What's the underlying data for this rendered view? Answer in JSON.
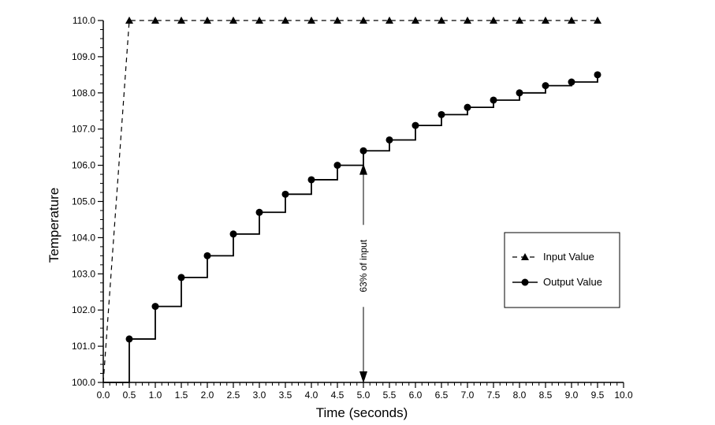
{
  "chart_data": {
    "type": "line",
    "xlabel": "Time (seconds)",
    "ylabel": "Temperature",
    "xlim": [
      0,
      10
    ],
    "ylim": [
      100,
      110
    ],
    "xticks": [
      "0.0",
      "0.5",
      "1.0",
      "1.5",
      "2.0",
      "2.5",
      "3.0",
      "3.5",
      "4.0",
      "4.5",
      "5.0",
      "5.5",
      "6.0",
      "6.5",
      "7.0",
      "7.5",
      "8.0",
      "8.5",
      "9.0",
      "9.5",
      "10.0"
    ],
    "yticks": [
      "100.0",
      "101.0",
      "102.0",
      "103.0",
      "104.0",
      "105.0",
      "106.0",
      "107.0",
      "108.0",
      "109.0",
      "110.0"
    ],
    "grid": false,
    "legend_position": "right",
    "series": [
      {
        "name": "Input Value",
        "style": "dashed",
        "marker": "triangle",
        "x": [
          0.0,
          0.5,
          1.0,
          1.5,
          2.0,
          2.5,
          3.0,
          3.5,
          4.0,
          4.5,
          5.0,
          5.5,
          6.0,
          6.5,
          7.0,
          7.5,
          8.0,
          8.5,
          9.0,
          9.5
        ],
        "y": [
          100.0,
          110.0,
          110.0,
          110.0,
          110.0,
          110.0,
          110.0,
          110.0,
          110.0,
          110.0,
          110.0,
          110.0,
          110.0,
          110.0,
          110.0,
          110.0,
          110.0,
          110.0,
          110.0,
          110.0
        ]
      },
      {
        "name": "Output Value",
        "style": "step",
        "marker": "circle",
        "x": [
          0.5,
          1.0,
          1.5,
          2.0,
          2.5,
          3.0,
          3.5,
          4.0,
          4.5,
          5.0,
          5.5,
          6.0,
          6.5,
          7.0,
          7.5,
          8.0,
          8.5,
          9.0,
          9.5
        ],
        "y": [
          101.2,
          102.1,
          102.9,
          103.5,
          104.1,
          104.7,
          105.2,
          105.6,
          106.0,
          106.4,
          106.7,
          107.1,
          107.4,
          107.6,
          107.8,
          108.0,
          108.2,
          108.3,
          108.5
        ]
      }
    ],
    "annotation": {
      "text": "63% of input",
      "x": 5.0,
      "y_from": 100.0,
      "y_to": 106.0
    },
    "colors": {
      "line": "#000000",
      "background": "#ffffff"
    }
  }
}
